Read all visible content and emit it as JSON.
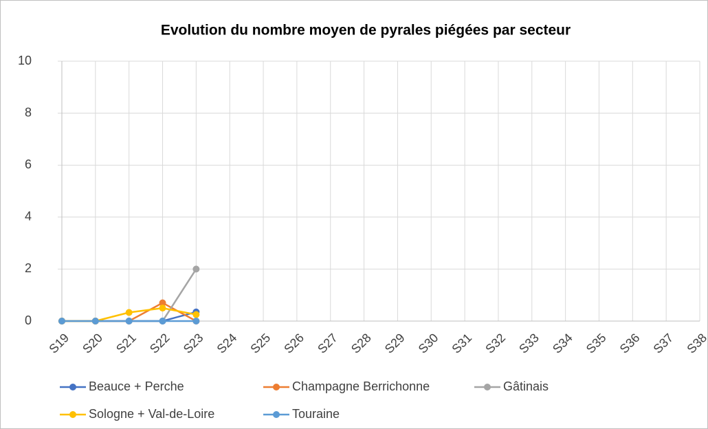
{
  "chart_data": {
    "type": "line",
    "title": "Evolution du nombre moyen de pyrales piégées par secteur",
    "categories": [
      "S19",
      "S20",
      "S21",
      "S22",
      "S23",
      "S24",
      "S25",
      "S26",
      "S27",
      "S28",
      "S29",
      "S30",
      "S31",
      "S32",
      "S33",
      "S34",
      "S35",
      "S36",
      "S37",
      "S38"
    ],
    "series": [
      {
        "name": "Beauce + Perche",
        "color": "#4472c4",
        "values": [
          0,
          0,
          0,
          0,
          0.35,
          null,
          null,
          null,
          null,
          null,
          null,
          null,
          null,
          null,
          null,
          null,
          null,
          null,
          null,
          null
        ]
      },
      {
        "name": "Champagne Berrichonne",
        "color": "#ed7d31",
        "values": [
          0,
          0,
          0,
          0.7,
          0,
          null,
          null,
          null,
          null,
          null,
          null,
          null,
          null,
          null,
          null,
          null,
          null,
          null,
          null,
          null
        ]
      },
      {
        "name": "Gâtinais",
        "color": "#a5a5a5",
        "values": [
          0,
          0,
          0,
          0,
          2,
          null,
          null,
          null,
          null,
          null,
          null,
          null,
          null,
          null,
          null,
          null,
          null,
          null,
          null,
          null
        ]
      },
      {
        "name": "Sologne + Val-de-Loire",
        "color": "#ffc000",
        "values": [
          0,
          0,
          0.33,
          0.5,
          0.25,
          null,
          null,
          null,
          null,
          null,
          null,
          null,
          null,
          null,
          null,
          null,
          null,
          null,
          null,
          null
        ]
      },
      {
        "name": "Touraine",
        "color": "#5b9bd5",
        "values": [
          0,
          0,
          0,
          0,
          0,
          null,
          null,
          null,
          null,
          null,
          null,
          null,
          null,
          null,
          null,
          null,
          null,
          null,
          null,
          null
        ]
      }
    ],
    "ylim": [
      0,
      10
    ],
    "yticks": [
      0,
      2,
      4,
      6,
      8,
      10
    ],
    "grid": true
  }
}
